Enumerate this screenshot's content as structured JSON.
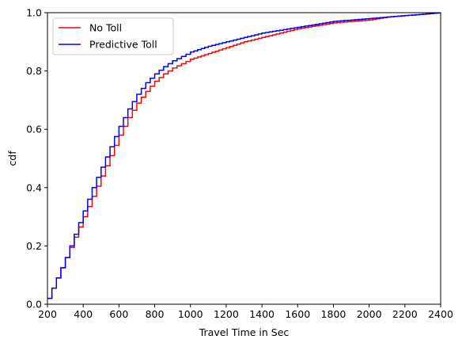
{
  "chart_data": {
    "type": "line",
    "step": true,
    "xlabel": "Travel Time in Sec",
    "ylabel": "cdf",
    "xlim": [
      200,
      2400
    ],
    "ylim": [
      0,
      1
    ],
    "xticks": [
      200,
      400,
      600,
      800,
      1000,
      1200,
      1400,
      1600,
      1800,
      2000,
      2200,
      2400
    ],
    "yticks": [
      0.0,
      0.2,
      0.4,
      0.6,
      0.8,
      1.0
    ],
    "ytick_labels": [
      "0.0",
      "0.2",
      "0.4",
      "0.6",
      "0.8",
      "1.0"
    ],
    "grid": false,
    "legend_position": "top-left",
    "series": [
      {
        "name": "No Toll",
        "color": "#ff0000",
        "x": [
          200,
          250,
          300,
          350,
          400,
          450,
          500,
          550,
          600,
          650,
          700,
          750,
          800,
          850,
          900,
          950,
          1000,
          1100,
          1200,
          1300,
          1400,
          1500,
          1600,
          1700,
          1800,
          1900,
          2000,
          2100,
          2200,
          2300,
          2400
        ],
        "y": [
          0.02,
          0.09,
          0.16,
          0.23,
          0.3,
          0.37,
          0.44,
          0.51,
          0.58,
          0.64,
          0.69,
          0.73,
          0.765,
          0.79,
          0.81,
          0.825,
          0.84,
          0.86,
          0.88,
          0.9,
          0.915,
          0.93,
          0.945,
          0.955,
          0.965,
          0.97,
          0.975,
          0.985,
          0.99,
          0.995,
          1.0
        ]
      },
      {
        "name": "Predictive Toll",
        "color": "#0000ff",
        "x": [
          200,
          250,
          300,
          350,
          400,
          450,
          500,
          550,
          600,
          650,
          700,
          750,
          800,
          850,
          900,
          950,
          1000,
          1100,
          1200,
          1300,
          1400,
          1500,
          1600,
          1700,
          1800,
          1900,
          2000,
          2100,
          2200,
          2300,
          2400
        ],
        "y": [
          0.02,
          0.09,
          0.16,
          0.24,
          0.32,
          0.4,
          0.47,
          0.54,
          0.61,
          0.67,
          0.72,
          0.76,
          0.79,
          0.815,
          0.835,
          0.85,
          0.865,
          0.885,
          0.9,
          0.915,
          0.93,
          0.94,
          0.95,
          0.96,
          0.97,
          0.975,
          0.98,
          0.985,
          0.99,
          0.995,
          1.0
        ]
      }
    ]
  }
}
